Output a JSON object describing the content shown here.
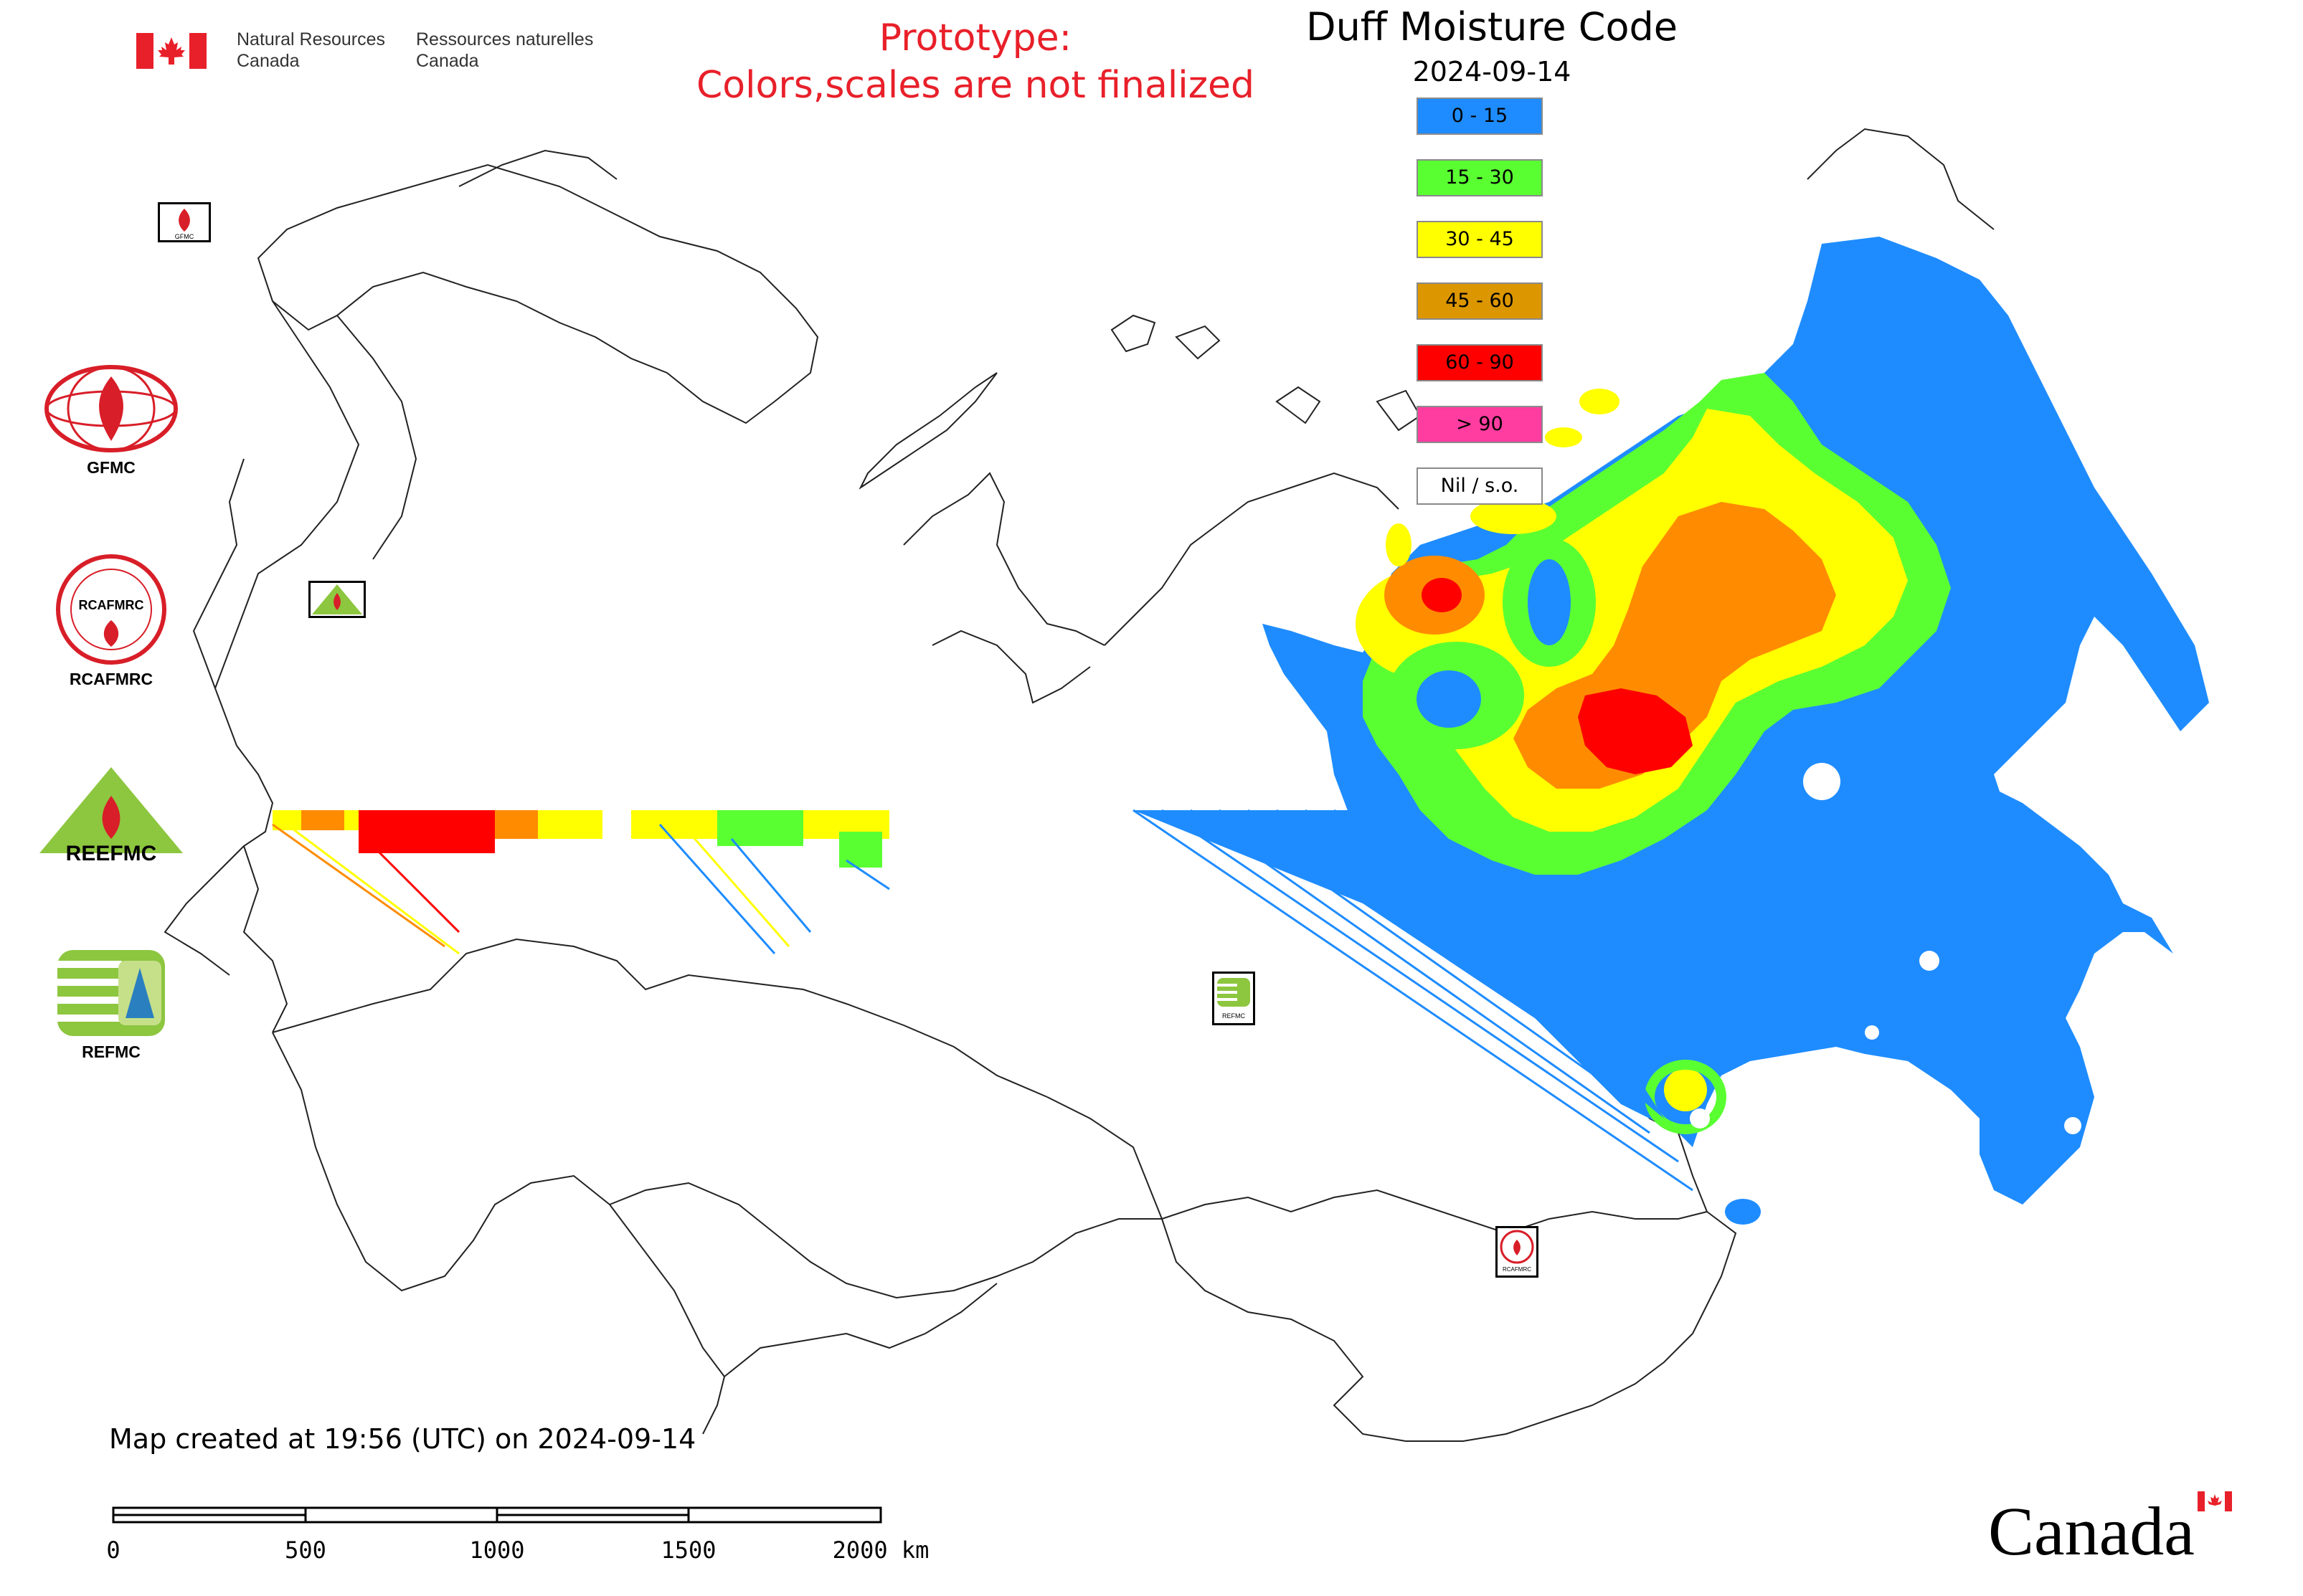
{
  "header": {
    "gov_en": [
      "Natural Resources",
      "Canada"
    ],
    "gov_fr": [
      "Ressources naturelles",
      "Canada"
    ],
    "prototype_line1": "Prototype:",
    "prototype_line2": "Colors,scales are not finalized"
  },
  "map": {
    "title": "Duff Moisture Code",
    "date": "2024-09-14"
  },
  "legend": [
    {
      "label": "0 - 15",
      "color": "#1e8cff"
    },
    {
      "label": "15 - 30",
      "color": "#5aff32"
    },
    {
      "label": "30 - 45",
      "color": "#ffff00"
    },
    {
      "label": "45 - 60",
      "color": "#dc9600"
    },
    {
      "label": "60 - 90",
      "color": "#ff0000"
    },
    {
      "label": "> 90",
      "color": "#ff3ca0"
    },
    {
      "label": "Nil / s.o.",
      "color": "#ffffff"
    }
  ],
  "partners": [
    {
      "label": "GFMC",
      "icon": "gfmc-logo"
    },
    {
      "label": "RCAFMRC",
      "icon": "rcafmrc-logo"
    },
    {
      "label": "REEFMC",
      "icon": "reefmc-logo"
    },
    {
      "label": "REFMC",
      "icon": "refmc-logo"
    }
  ],
  "logo_text": {
    "rcafmrc_small": "RCAFMRC",
    "reefmc_word": "REEFMC",
    "refmc_small": "REFMC",
    "gfmc_small": "GFMC"
  },
  "footer": {
    "caption": "Map created at 19:56 (UTC) on 2024-09-14",
    "scale_labels": [
      "0",
      "500",
      "1000",
      "1500",
      "2000 km"
    ],
    "wordmark": "Canada"
  }
}
